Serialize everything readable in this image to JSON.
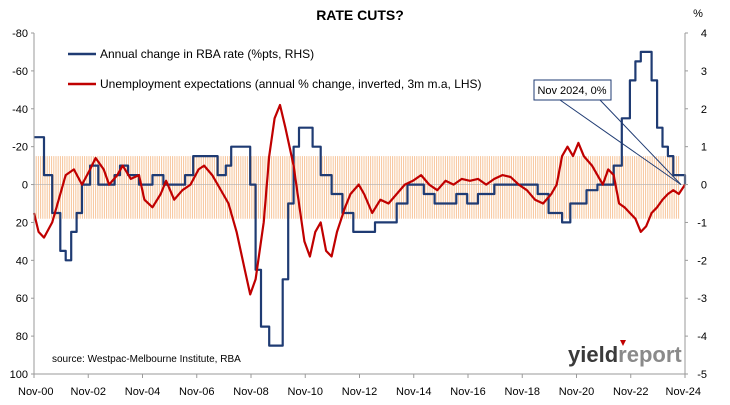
{
  "chart_data": {
    "type": "line",
    "title": "RATE CUTS?",
    "left_axis": {
      "ticks": [
        "-80",
        "-60",
        "-40",
        "-20",
        "0",
        "20",
        "40",
        "60",
        "80",
        "100"
      ],
      "range": [
        -80,
        100
      ],
      "inverted": true
    },
    "right_axis": {
      "unit_label": "%",
      "ticks": [
        "4",
        "3",
        "2",
        "1",
        "0",
        "-1",
        "-2",
        "-3",
        "-4",
        "-5"
      ],
      "range": [
        4,
        -5
      ]
    },
    "x_axis": {
      "ticks": [
        "Nov-00",
        "Nov-02",
        "Nov-04",
        "Nov-06",
        "Nov-08",
        "Nov-10",
        "Nov-12",
        "Nov-14",
        "Nov-16",
        "Nov-18",
        "Nov-20",
        "Nov-22",
        "Nov-24"
      ],
      "start_year": 2000.83,
      "end_year": 2024.83
    },
    "band": {
      "from": -15,
      "to": 18,
      "color": "#f7c49a"
    },
    "grid": false,
    "series": [
      {
        "name": "Annual change in RBA rate (%pts, RHS)",
        "axis": "right",
        "color": "#1f3b73",
        "step": true,
        "points": [
          [
            2000.83,
            1.25
          ],
          [
            2001.0,
            1.25
          ],
          [
            2001.2,
            0.25
          ],
          [
            2001.5,
            -0.75
          ],
          [
            2001.8,
            -1.75
          ],
          [
            2002.0,
            -2.0
          ],
          [
            2002.2,
            -1.25
          ],
          [
            2002.4,
            -0.75
          ],
          [
            2002.6,
            0.0
          ],
          [
            2002.9,
            0.5
          ],
          [
            2003.2,
            0.0
          ],
          [
            2003.5,
            0.0
          ],
          [
            2003.8,
            0.25
          ],
          [
            2004.0,
            0.5
          ],
          [
            2004.3,
            0.25
          ],
          [
            2004.7,
            0.0
          ],
          [
            2005.2,
            0.25
          ],
          [
            2005.6,
            0.0
          ],
          [
            2006.0,
            0.0
          ],
          [
            2006.4,
            0.25
          ],
          [
            2006.7,
            0.75
          ],
          [
            2007.3,
            0.75
          ],
          [
            2007.6,
            0.25
          ],
          [
            2007.9,
            0.5
          ],
          [
            2008.1,
            1.0
          ],
          [
            2008.5,
            1.0
          ],
          [
            2008.8,
            0.0
          ],
          [
            2009.0,
            -2.25
          ],
          [
            2009.2,
            -3.75
          ],
          [
            2009.5,
            -4.25
          ],
          [
            2009.8,
            -4.25
          ],
          [
            2010.0,
            -2.5
          ],
          [
            2010.2,
            -0.5
          ],
          [
            2010.4,
            1.0
          ],
          [
            2010.6,
            1.5
          ],
          [
            2010.9,
            1.5
          ],
          [
            2011.1,
            1.0
          ],
          [
            2011.4,
            0.25
          ],
          [
            2011.8,
            -0.25
          ],
          [
            2012.2,
            -0.75
          ],
          [
            2012.6,
            -1.25
          ],
          [
            2013.0,
            -1.25
          ],
          [
            2013.4,
            -1.0
          ],
          [
            2013.8,
            -1.0
          ],
          [
            2014.2,
            -0.5
          ],
          [
            2014.6,
            0.0
          ],
          [
            2015.2,
            -0.25
          ],
          [
            2015.6,
            -0.5
          ],
          [
            2016.0,
            -0.5
          ],
          [
            2016.4,
            -0.25
          ],
          [
            2016.8,
            -0.5
          ],
          [
            2017.2,
            -0.25
          ],
          [
            2017.8,
            0.0
          ],
          [
            2018.4,
            0.0
          ],
          [
            2019.0,
            0.0
          ],
          [
            2019.4,
            -0.25
          ],
          [
            2019.8,
            -0.75
          ],
          [
            2020.1,
            -0.75
          ],
          [
            2020.3,
            -1.0
          ],
          [
            2020.6,
            -0.5
          ],
          [
            2020.9,
            -0.5
          ],
          [
            2021.2,
            -0.15
          ],
          [
            2021.6,
            0.0
          ],
          [
            2022.0,
            0.0
          ],
          [
            2022.2,
            0.5
          ],
          [
            2022.5,
            1.75
          ],
          [
            2022.8,
            2.75
          ],
          [
            2023.0,
            3.25
          ],
          [
            2023.2,
            3.5
          ],
          [
            2023.4,
            3.5
          ],
          [
            2023.6,
            2.75
          ],
          [
            2023.8,
            1.5
          ],
          [
            2024.0,
            1.0
          ],
          [
            2024.2,
            0.75
          ],
          [
            2024.4,
            0.25
          ],
          [
            2024.6,
            0.25
          ],
          [
            2024.83,
            0.0
          ]
        ]
      },
      {
        "name": "Unemployment expectations (annual % change, inverted, 3m m.a, LHS)",
        "axis": "left",
        "color": "#c00000",
        "step": false,
        "points": [
          [
            2000.83,
            15
          ],
          [
            2001.0,
            25
          ],
          [
            2001.2,
            28
          ],
          [
            2001.5,
            20
          ],
          [
            2001.7,
            10
          ],
          [
            2002.0,
            -5
          ],
          [
            2002.3,
            -8
          ],
          [
            2002.6,
            0
          ],
          [
            2002.9,
            -8
          ],
          [
            2003.1,
            -14
          ],
          [
            2003.4,
            -8
          ],
          [
            2003.6,
            0
          ],
          [
            2003.9,
            -5
          ],
          [
            2004.1,
            -10
          ],
          [
            2004.4,
            -3
          ],
          [
            2004.7,
            -5
          ],
          [
            2004.9,
            8
          ],
          [
            2005.2,
            12
          ],
          [
            2005.5,
            5
          ],
          [
            2005.7,
            -2
          ],
          [
            2006.0,
            8
          ],
          [
            2006.3,
            3
          ],
          [
            2006.6,
            0
          ],
          [
            2006.9,
            -8
          ],
          [
            2007.1,
            -10
          ],
          [
            2007.4,
            -5
          ],
          [
            2007.8,
            5
          ],
          [
            2008.0,
            10
          ],
          [
            2008.3,
            25
          ],
          [
            2008.6,
            45
          ],
          [
            2008.8,
            58
          ],
          [
            2009.0,
            50
          ],
          [
            2009.3,
            20
          ],
          [
            2009.5,
            -15
          ],
          [
            2009.7,
            -35
          ],
          [
            2009.9,
            -42
          ],
          [
            2010.1,
            -30
          ],
          [
            2010.4,
            -10
          ],
          [
            2010.6,
            10
          ],
          [
            2010.8,
            30
          ],
          [
            2011.0,
            38
          ],
          [
            2011.2,
            25
          ],
          [
            2011.4,
            20
          ],
          [
            2011.6,
            35
          ],
          [
            2011.8,
            38
          ],
          [
            2012.0,
            25
          ],
          [
            2012.3,
            12
          ],
          [
            2012.5,
            5
          ],
          [
            2012.8,
            0
          ],
          [
            2013.0,
            5
          ],
          [
            2013.3,
            15
          ],
          [
            2013.6,
            8
          ],
          [
            2013.9,
            10
          ],
          [
            2014.2,
            5
          ],
          [
            2014.5,
            0
          ],
          [
            2014.8,
            -2
          ],
          [
            2015.1,
            -5
          ],
          [
            2015.4,
            0
          ],
          [
            2015.7,
            3
          ],
          [
            2016.0,
            -2
          ],
          [
            2016.3,
            0
          ],
          [
            2016.6,
            -3
          ],
          [
            2016.9,
            -2
          ],
          [
            2017.2,
            -3
          ],
          [
            2017.5,
            0
          ],
          [
            2017.8,
            -3
          ],
          [
            2018.1,
            -5
          ],
          [
            2018.4,
            -4
          ],
          [
            2018.7,
            0
          ],
          [
            2019.0,
            3
          ],
          [
            2019.3,
            8
          ],
          [
            2019.6,
            10
          ],
          [
            2019.9,
            5
          ],
          [
            2020.1,
            0
          ],
          [
            2020.3,
            -15
          ],
          [
            2020.5,
            -20
          ],
          [
            2020.7,
            -15
          ],
          [
            2020.9,
            -22
          ],
          [
            2021.1,
            -15
          ],
          [
            2021.4,
            -10
          ],
          [
            2021.6,
            -5
          ],
          [
            2021.8,
            0
          ],
          [
            2022.0,
            -8
          ],
          [
            2022.2,
            -5
          ],
          [
            2022.4,
            10
          ],
          [
            2022.6,
            12
          ],
          [
            2022.8,
            15
          ],
          [
            2023.0,
            18
          ],
          [
            2023.2,
            25
          ],
          [
            2023.4,
            22
          ],
          [
            2023.6,
            15
          ],
          [
            2023.8,
            12
          ],
          [
            2024.0,
            8
          ],
          [
            2024.2,
            5
          ],
          [
            2024.4,
            3
          ],
          [
            2024.6,
            5
          ],
          [
            2024.83,
            0
          ]
        ]
      }
    ],
    "annotation": {
      "text": "Nov 2024, 0%",
      "point_year": 2024.83,
      "point_value_right": 0
    },
    "source": "source: Westpac-Melbourne Institute, RBA",
    "watermark": {
      "dark": "yield",
      "accent": "report",
      "dark_color": "#3a3a3a",
      "accent_color": "#8a8a8a"
    }
  }
}
